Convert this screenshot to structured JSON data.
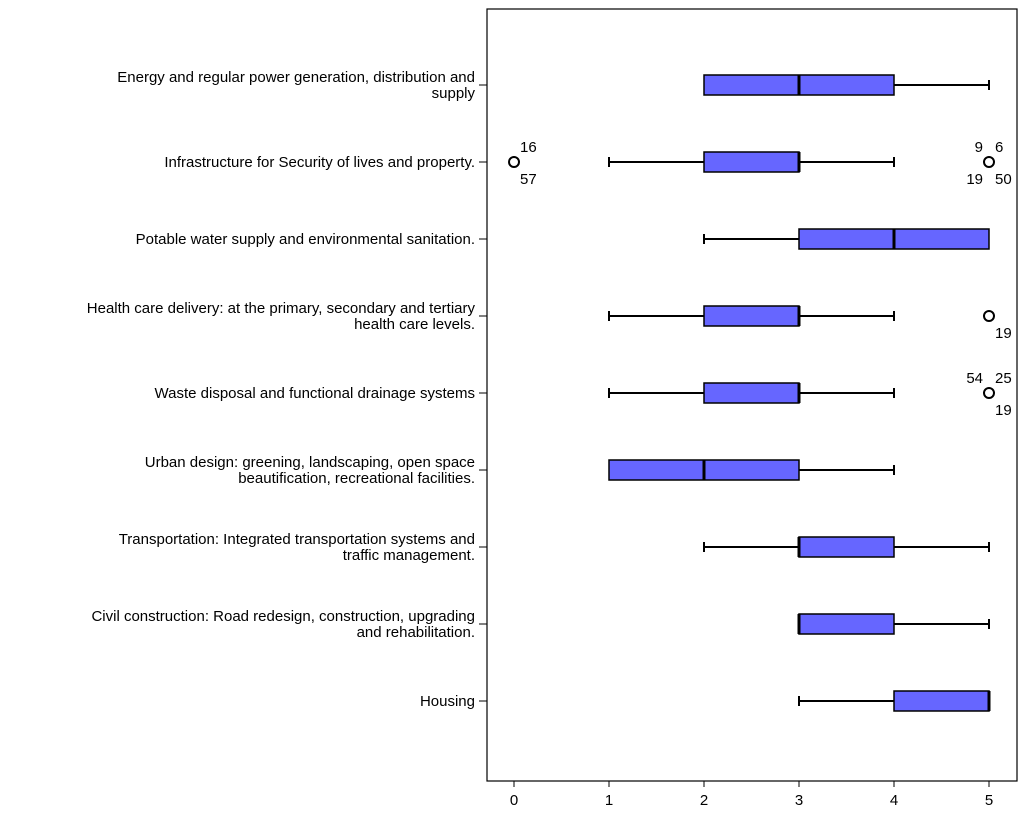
{
  "chart_data": {
    "type": "boxplot",
    "orientation": "horizontal",
    "xlim": [
      0,
      5
    ],
    "x_ticks": [
      "0",
      "1",
      "2",
      "3",
      "4",
      "5"
    ],
    "box_color": "#6666ff",
    "grid": false,
    "categories": [
      {
        "label_lines": [
          "Energy and regular power generation, distribution and",
          "supply"
        ],
        "whisker_low": 2,
        "q1": 2,
        "median": 3,
        "q3": 4,
        "whisker_high": 5,
        "outliers": []
      },
      {
        "label_lines": [
          "Infrastructure for Security of lives and property."
        ],
        "whisker_low": 1,
        "q1": 2,
        "median": 3,
        "q3": 3,
        "whisker_high": 4,
        "outliers": [
          {
            "x": 0,
            "labels": [
              {
                "text": "16",
                "pos": "above-right"
              },
              {
                "text": "57",
                "pos": "below-right"
              }
            ]
          },
          {
            "x": 5,
            "labels": [
              {
                "text": "9",
                "pos": "above-left"
              },
              {
                "text": "6",
                "pos": "above-right"
              },
              {
                "text": "19",
                "pos": "below-left"
              },
              {
                "text": "50",
                "pos": "below-right"
              }
            ]
          }
        ]
      },
      {
        "label_lines": [
          "Potable water supply and environmental sanitation."
        ],
        "whisker_low": 2,
        "q1": 3,
        "median": 4,
        "q3": 5,
        "whisker_high": 5,
        "outliers": []
      },
      {
        "label_lines": [
          "Health care delivery: at the primary, secondary and tertiary",
          "health care levels."
        ],
        "whisker_low": 1,
        "q1": 2,
        "median": 3,
        "q3": 3,
        "whisker_high": 4,
        "outliers": [
          {
            "x": 5,
            "labels": [
              {
                "text": "19",
                "pos": "below-right"
              }
            ]
          }
        ]
      },
      {
        "label_lines": [
          "Waste disposal and functional drainage systems"
        ],
        "whisker_low": 1,
        "q1": 2,
        "median": 3,
        "q3": 3,
        "whisker_high": 4,
        "outliers": [
          {
            "x": 5,
            "labels": [
              {
                "text": "54",
                "pos": "above-left"
              },
              {
                "text": "25",
                "pos": "above-right"
              },
              {
                "text": "19",
                "pos": "below-right"
              }
            ]
          }
        ]
      },
      {
        "label_lines": [
          "Urban design: greening, landscaping, open space",
          "beautification, recreational facilities."
        ],
        "whisker_low": 1,
        "q1": 1,
        "median": 2,
        "q3": 3,
        "whisker_high": 4,
        "outliers": []
      },
      {
        "label_lines": [
          "Transportation: Integrated transportation systems and",
          "traffic management."
        ],
        "whisker_low": 2,
        "q1": 3,
        "median": 3,
        "q3": 4,
        "whisker_high": 5,
        "outliers": []
      },
      {
        "label_lines": [
          "Civil construction: Road redesign, construction, upgrading",
          "and rehabilitation."
        ],
        "whisker_low": 3,
        "q1": 3,
        "median": 3,
        "q3": 4,
        "whisker_high": 5,
        "outliers": []
      },
      {
        "label_lines": [
          "Housing"
        ],
        "whisker_low": 3,
        "q1": 4,
        "median": 5,
        "q3": 5,
        "whisker_high": 5,
        "outliers": []
      }
    ]
  }
}
